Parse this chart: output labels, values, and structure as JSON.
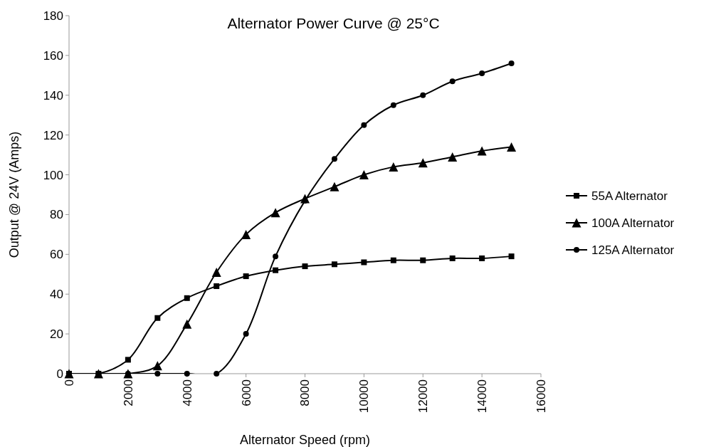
{
  "chart_data": {
    "type": "line",
    "title": "Alternator Power Curve @ 25°C",
    "xlabel": "Alternator Speed (rpm)",
    "ylabel": "Output @ 24V (Amps)",
    "x": [
      0,
      1000,
      2000,
      3000,
      4000,
      5000,
      6000,
      7000,
      8000,
      9000,
      10000,
      11000,
      12000,
      13000,
      14000,
      15000
    ],
    "series": [
      {
        "name": "55A Alternator",
        "color": "#000000",
        "marker": "square",
        "values": [
          0,
          0,
          7,
          28,
          38,
          44,
          49,
          52,
          54,
          55,
          56,
          57,
          57,
          58,
          58,
          59
        ]
      },
      {
        "name": "100A Alternator",
        "color": "#000000",
        "marker": "triangle",
        "values": [
          0,
          0,
          0,
          4,
          25,
          51,
          70,
          81,
          88,
          94,
          100,
          104,
          106,
          109,
          112,
          114
        ]
      },
      {
        "name": "125A Alternator",
        "color": "#000000",
        "marker": "circle",
        "values": [
          0,
          0,
          0,
          0,
          0,
          0,
          20,
          59,
          87,
          108,
          125,
          135,
          140,
          147,
          151,
          156
        ]
      }
    ],
    "xlim": [
      0,
      16000
    ],
    "xticks": [
      0,
      2000,
      4000,
      6000,
      8000,
      10000,
      12000,
      14000,
      16000
    ],
    "ylim": [
      0,
      180
    ],
    "yticks": [
      0,
      20,
      40,
      60,
      80,
      100,
      120,
      140,
      160,
      180
    ],
    "grid": false,
    "legend": "right",
    "line_style": "solid"
  }
}
